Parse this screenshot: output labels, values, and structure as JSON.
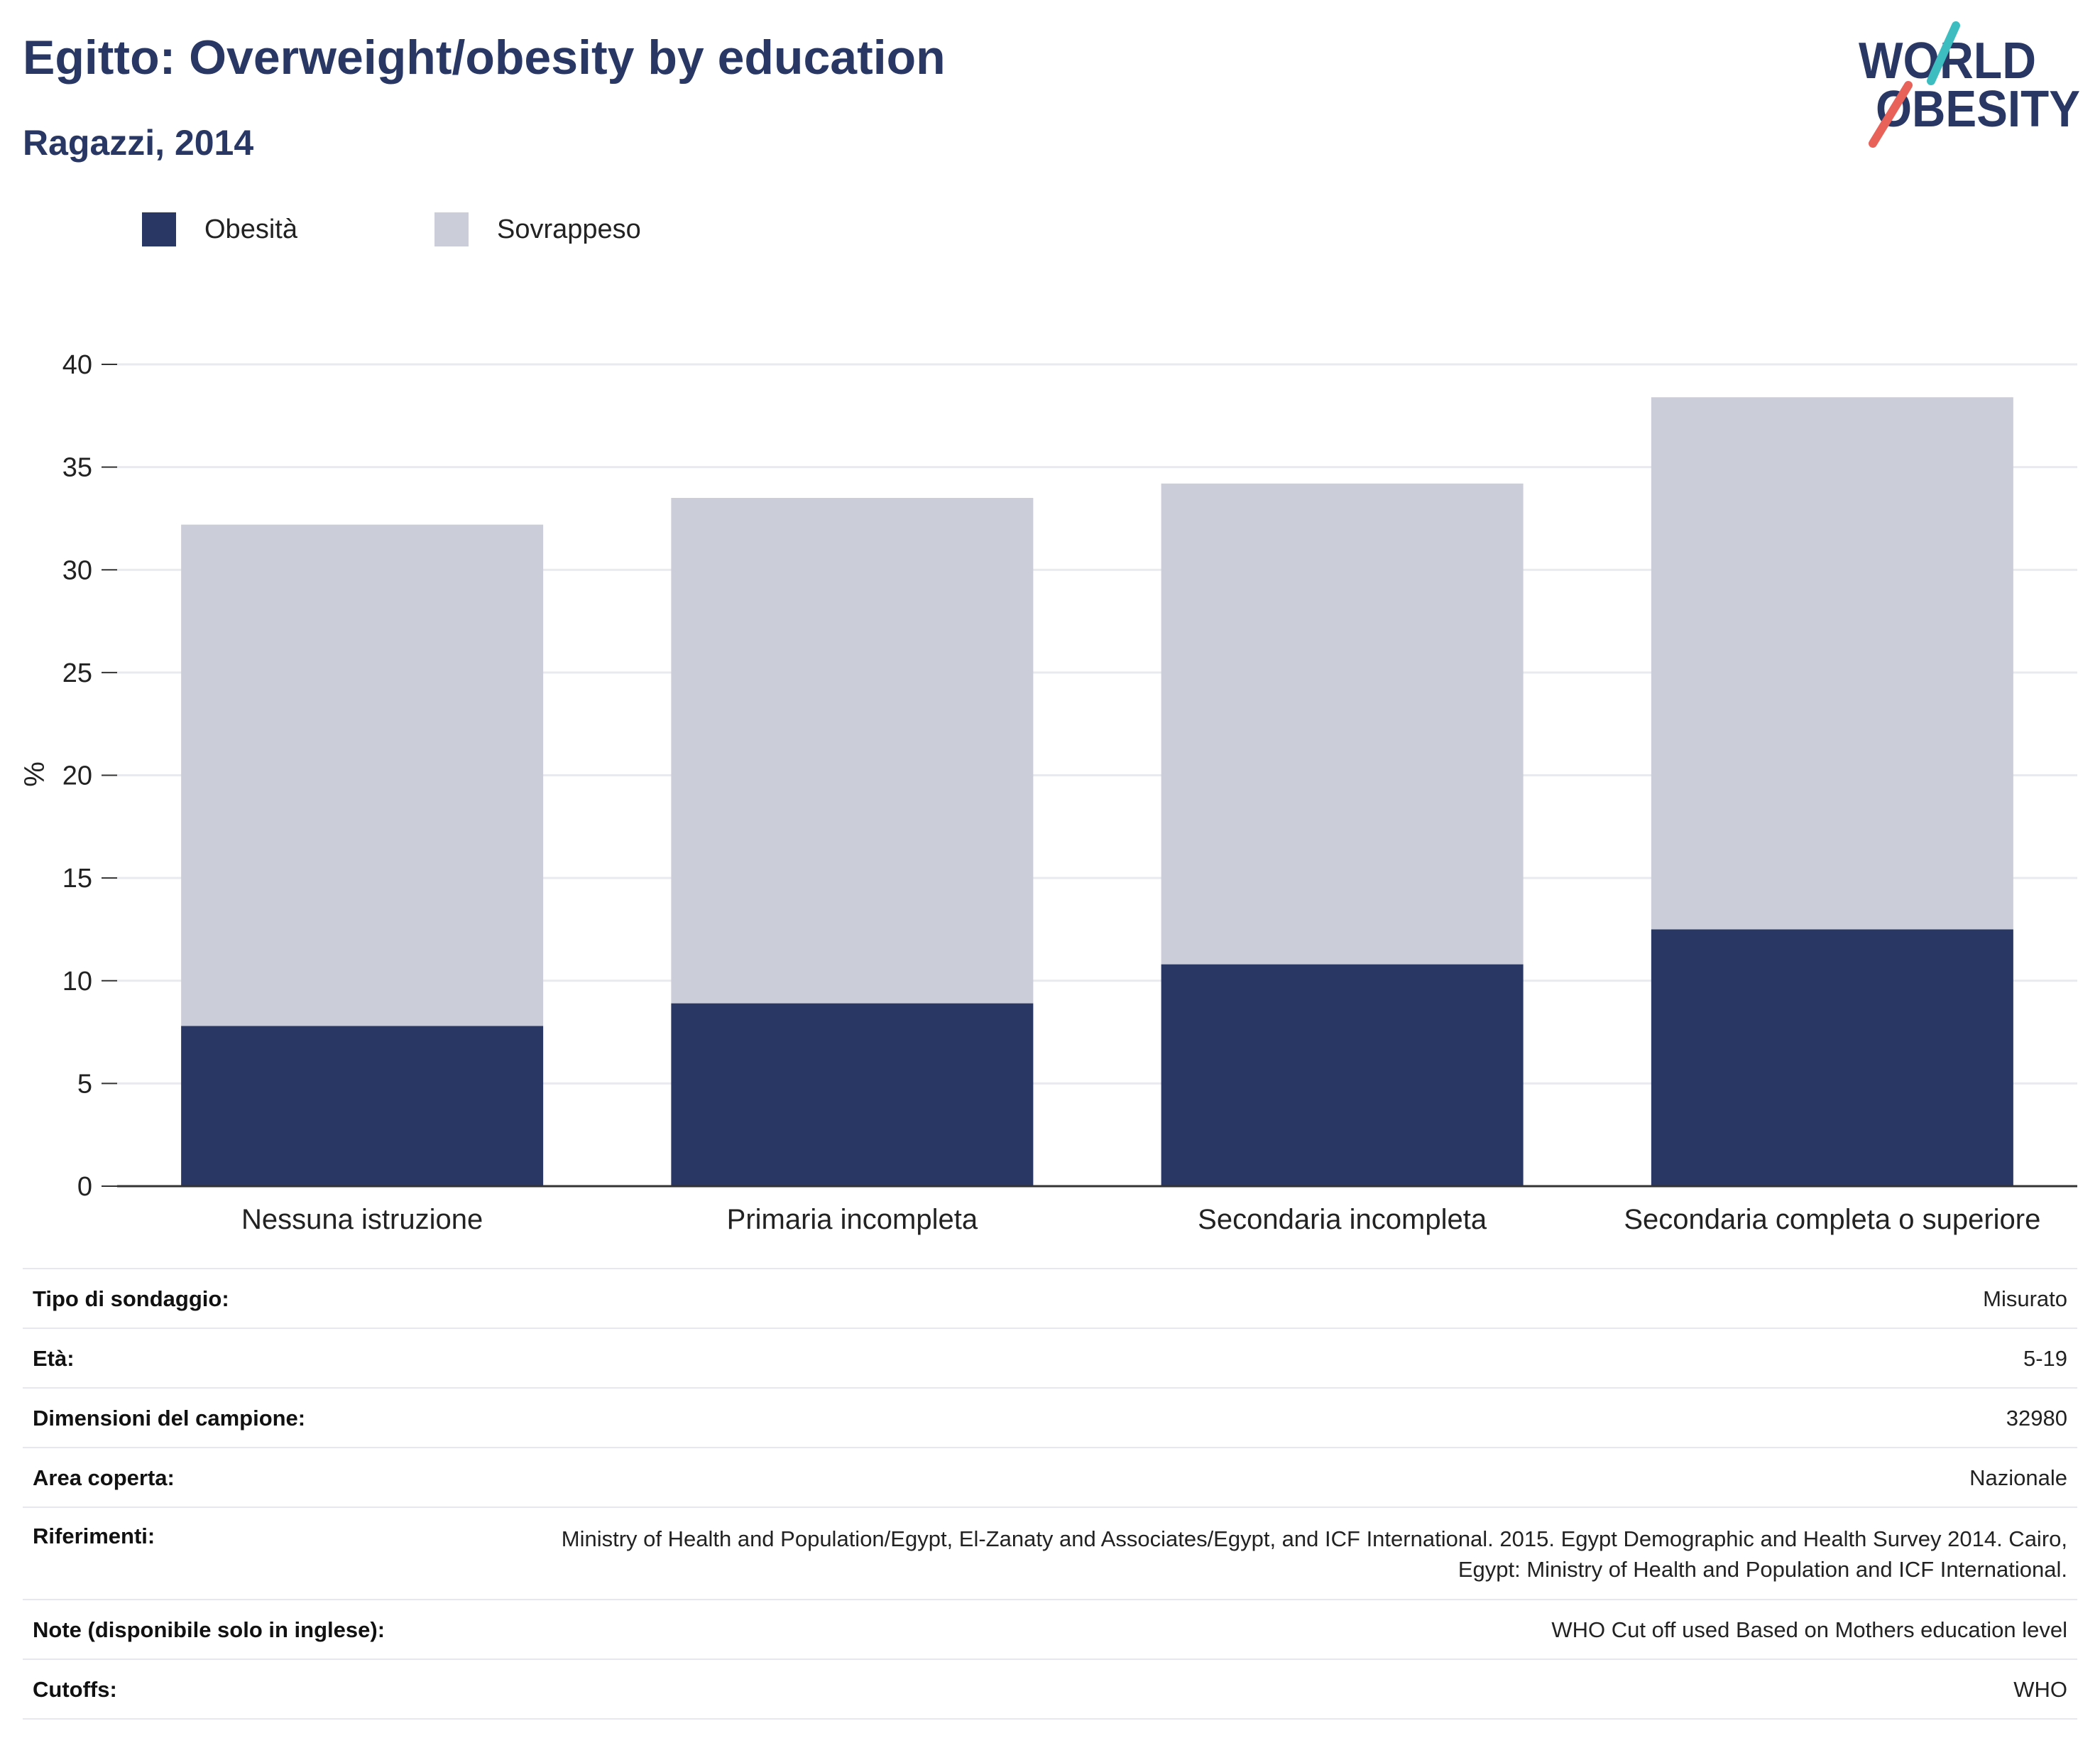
{
  "header": {
    "title": "Egitto: Overweight/obesity by education",
    "subtitle": "Ragazzi, 2014"
  },
  "logo": {
    "line1": "WORLD",
    "line2": "OBESITY",
    "slash_top_color": "#3dbdc0",
    "slash_bottom_color": "#e8625a"
  },
  "colors": {
    "obesity": "#283764",
    "overweight": "#cbcdd8",
    "grid": "#e9eaef",
    "axis": "#333333"
  },
  "legend": [
    {
      "label": "Obesità",
      "color": "#283764"
    },
    {
      "label": "Sovrappeso",
      "color": "#cbcdd8"
    }
  ],
  "chart_data": {
    "type": "bar",
    "stacked": true,
    "categories": [
      "Nessuna istruzione",
      "Primaria incompleta",
      "Secondaria incompleta",
      "Secondaria completa o superiore"
    ],
    "series": [
      {
        "name": "Obesità",
        "values": [
          7.8,
          8.9,
          10.8,
          12.5
        ]
      },
      {
        "name": "Sovrappeso",
        "values": [
          24.4,
          24.6,
          23.4,
          25.9
        ]
      }
    ],
    "ylabel": "%",
    "ylim": [
      0,
      40
    ],
    "yticks": [
      0,
      5,
      10,
      15,
      20,
      25,
      30,
      35,
      40
    ],
    "grid": true,
    "legend_position": "top-left"
  },
  "info": [
    {
      "key": "Tipo di sondaggio:",
      "value": "Misurato"
    },
    {
      "key": "Età:",
      "value": "5-19"
    },
    {
      "key": "Dimensioni del campione:",
      "value": "32980"
    },
    {
      "key": "Area coperta:",
      "value": "Nazionale"
    },
    {
      "key": "Riferimenti:",
      "value": "Ministry of Health and Population/Egypt, El-Zanaty and Associates/Egypt, and ICF International. 2015. Egypt Demographic and Health Survey 2014. Cairo, Egypt: Ministry of Health and Population and ICF International."
    },
    {
      "key": "Note (disponibile solo in inglese):",
      "value": "WHO Cut off used Based on Mothers education level"
    },
    {
      "key": "Cutoffs:",
      "value": "WHO"
    }
  ]
}
